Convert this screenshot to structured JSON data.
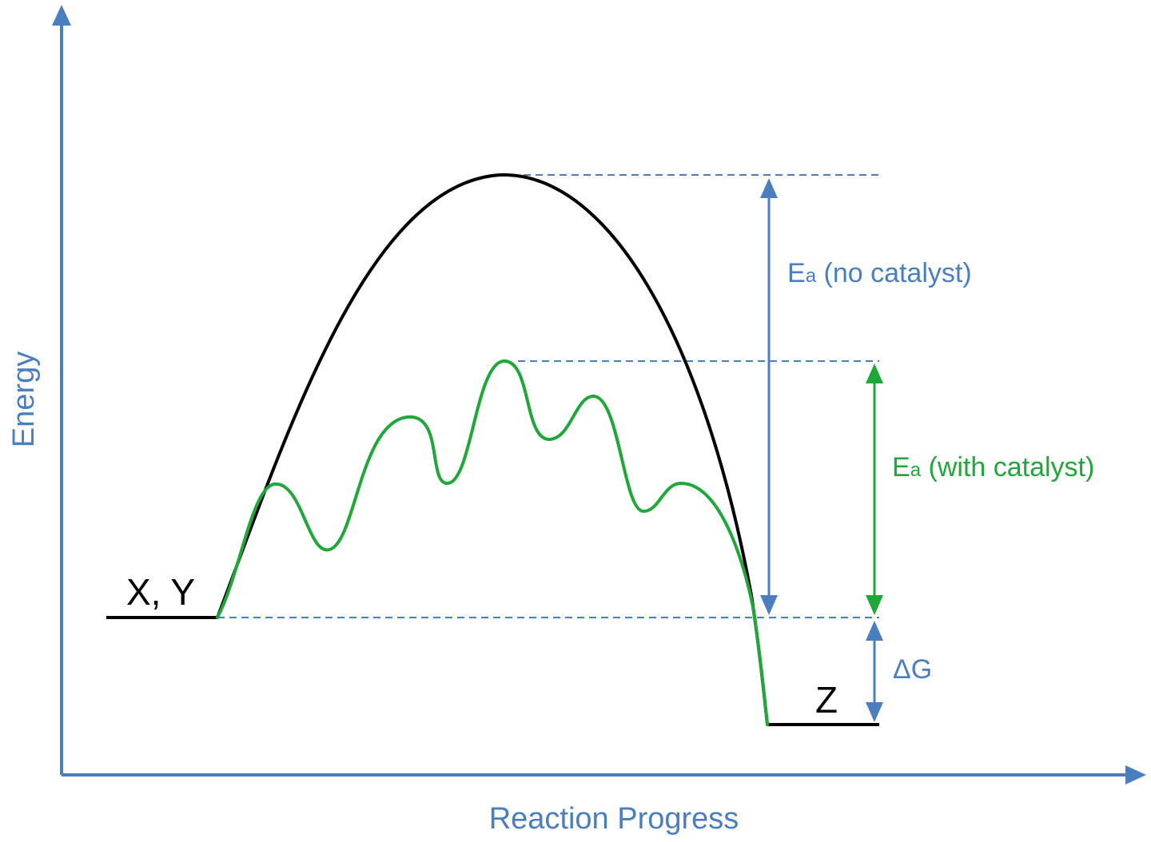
{
  "axes": {
    "x_label": "Reaction Progress",
    "y_label": "Energy"
  },
  "labels": {
    "reactants": "X, Y",
    "product": "Z",
    "ea_no_catalyst_symbol": "E",
    "ea_no_catalyst_subscript": "a",
    "ea_no_catalyst_text": " (no catalyst)",
    "ea_with_catalyst_symbol": "E",
    "ea_with_catalyst_subscript": "a",
    "ea_with_catalyst_text": " (with catalyst)",
    "delta_g": "ΔG"
  },
  "colors": {
    "axis": "#4a7ebf",
    "no_catalyst_curve": "#000000",
    "with_catalyst_curve": "#1fa83a",
    "guides": "#4a7ebf",
    "ea_no_catalyst_text": "#4a7ebf",
    "ea_with_catalyst_text": "#1fa83a",
    "delta_g_text": "#4a7ebf",
    "state_labels": "#000000"
  }
}
